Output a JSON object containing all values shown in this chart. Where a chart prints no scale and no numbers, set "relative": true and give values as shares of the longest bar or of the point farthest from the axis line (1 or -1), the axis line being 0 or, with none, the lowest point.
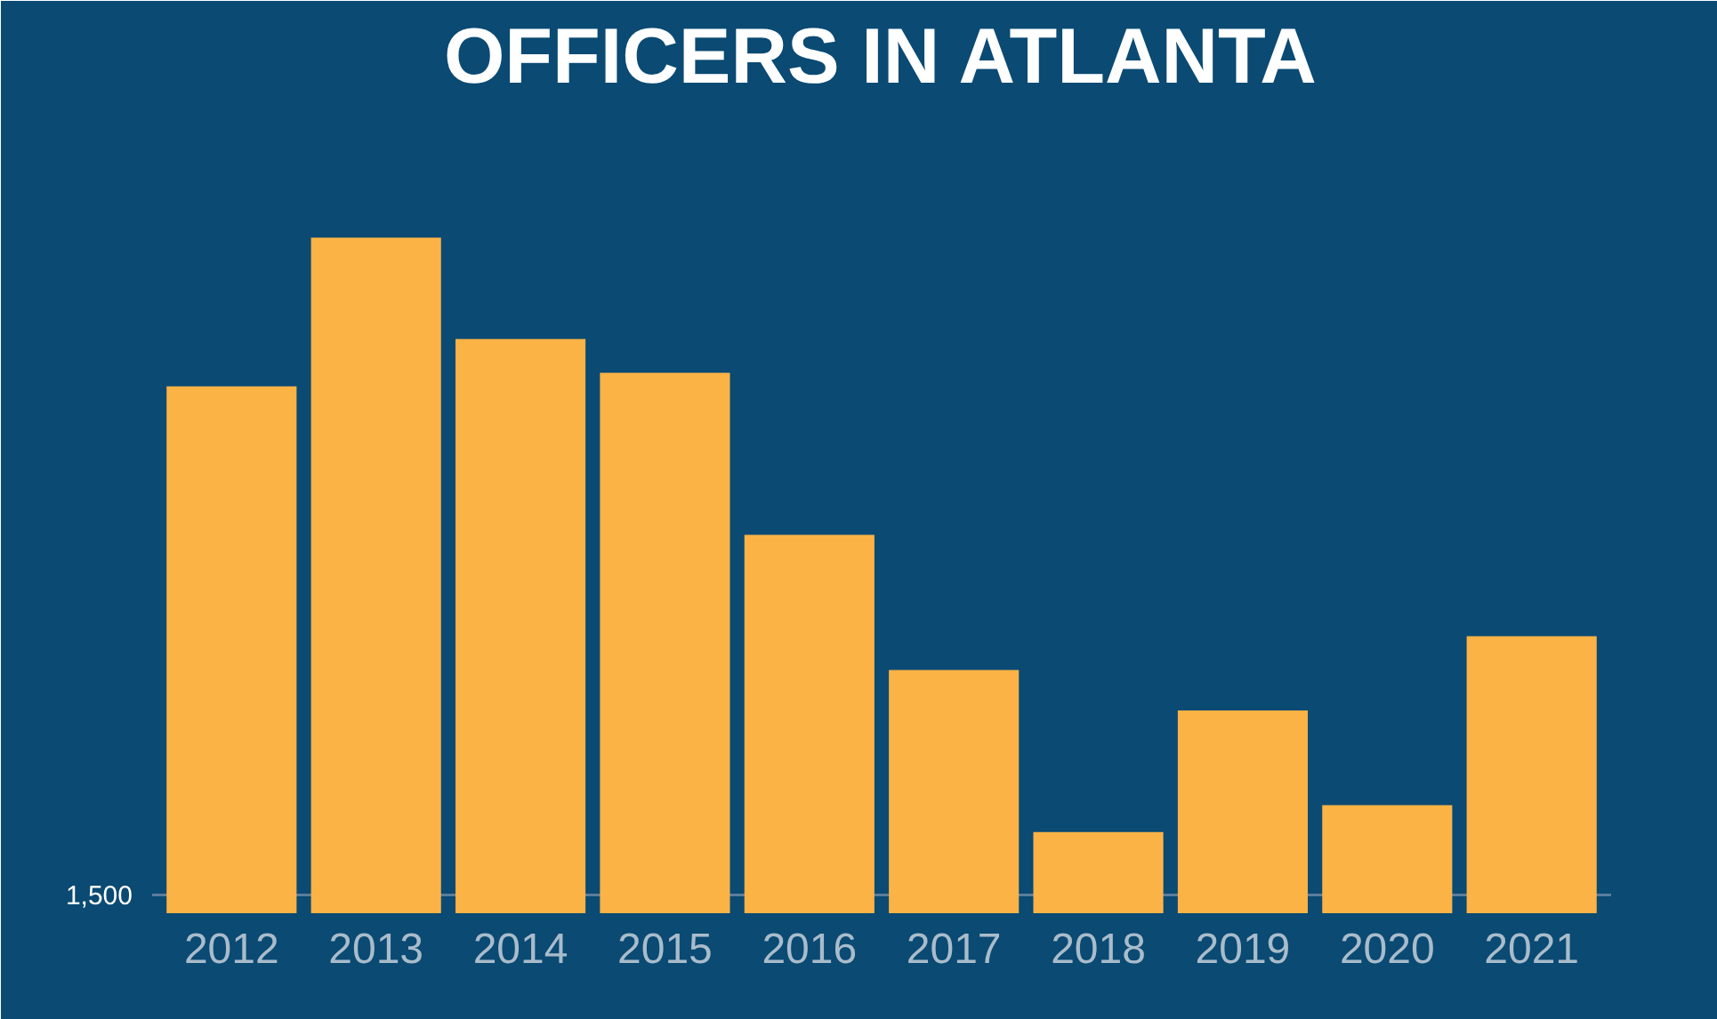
{
  "chart_data": {
    "type": "bar",
    "title": "OFFICERS IN ATLANTA",
    "relative": true,
    "categories": [
      "2012",
      "2013",
      "2014",
      "2015",
      "2016",
      "2017",
      "2018",
      "2019",
      "2020",
      "2021"
    ],
    "values": [
      0.78,
      1,
      0.85,
      0.8,
      0.56,
      0.36,
      0.12,
      0.3,
      0.16,
      0.41
    ],
    "color": "#fbb346",
    "grid": false,
    "annotations": [
      "1,500"
    ],
    "ref_lines": [
      {
        "axis": "y",
        "value": 0.027,
        "color": "#5a7e9c"
      }
    ]
  }
}
